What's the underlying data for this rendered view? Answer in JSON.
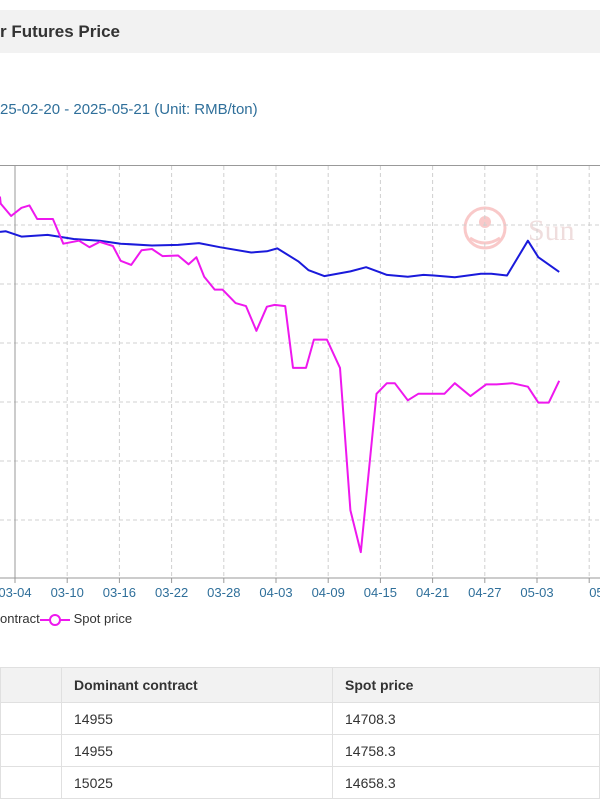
{
  "header": {
    "title": "r Futures Price"
  },
  "chart_data": {
    "type": "line",
    "title": "r Futures Price",
    "subtitle": "25-02-20 - 2025-05-21 (Unit: RMB/ton)",
    "categories": [
      "03-04",
      "03-10",
      "03-16",
      "03-22",
      "03-28",
      "04-03",
      "04-09",
      "04-15",
      "04-21",
      "04-27",
      "05-03",
      "05-"
    ],
    "grid": true,
    "legend_position": "bottom-left",
    "watermark": "Sun",
    "series": [
      {
        "name": "ontract",
        "color": "#1a1adb",
        "x": [
          0,
          0.4,
          0.7,
          1.2,
          1.7,
          2.2,
          2.6,
          3.2,
          3.7,
          4.1,
          4.5,
          5.1,
          5.4,
          5.6,
          6.0,
          6.2,
          6.5,
          7.0,
          7.3,
          7.7,
          8.1,
          8.4,
          8.6,
          9.0,
          9.5,
          9.7,
          10.0,
          10.4,
          10.6,
          11.0
        ],
        "values": [
          15030,
          15040,
          14950,
          14980,
          14910,
          14880,
          14830,
          14800,
          14810,
          14840,
          14770,
          14680,
          14700,
          14750,
          14530,
          14380,
          14280,
          14360,
          14430,
          14300,
          14270,
          14300,
          14290,
          14260,
          14320,
          14320,
          14290,
          14880,
          14600,
          14350
        ]
      },
      {
        "name": "Spot price",
        "color": "#ee18ee",
        "x": [
          0,
          0.2,
          0.3,
          0.5,
          0.7,
          0.85,
          1.0,
          1.3,
          1.5,
          1.8,
          2.0,
          2.2,
          2.45,
          2.6,
          2.8,
          3.0,
          3.2,
          3.4,
          3.7,
          3.9,
          4.05,
          4.2,
          4.4,
          4.55,
          4.8,
          5.0,
          5.2,
          5.4,
          5.55,
          5.75,
          5.9,
          6.15,
          6.3,
          6.55,
          6.8,
          7.0,
          7.2,
          7.5,
          7.7,
          7.85,
          8.1,
          8.3,
          8.5,
          8.8,
          9.0,
          9.3,
          9.6,
          9.8,
          10.1,
          10.4,
          10.6,
          10.8,
          11.0
        ],
        "values": [
          15600,
          15620,
          15510,
          15300,
          15440,
          15480,
          15250,
          15250,
          14830,
          14880,
          14770,
          14860,
          14790,
          14540,
          14470,
          14720,
          14740,
          14620,
          14630,
          14480,
          14600,
          14270,
          14050,
          14050,
          13820,
          13770,
          13350,
          13760,
          13790,
          13770,
          12720,
          12720,
          13200,
          13200,
          12720,
          10300,
          9590,
          12280,
          12460,
          12460,
          12170,
          12280,
          12280,
          12280,
          12460,
          12240,
          12440,
          12440,
          12460,
          12400,
          12130,
          12130,
          12500
        ]
      }
    ],
    "table": {
      "headers": [
        "",
        "Dominant contract",
        "Spot price"
      ],
      "rows": [
        [
          "",
          "14955",
          "14708.3"
        ],
        [
          "",
          "14955",
          "14758.3"
        ],
        [
          "",
          "15025",
          "14658.3"
        ]
      ]
    }
  },
  "colors": {
    "grid": "#d0d0d0",
    "axis": "#999999",
    "tick_label": "#2f6f9a",
    "header_bg": "#f2f2f2"
  }
}
